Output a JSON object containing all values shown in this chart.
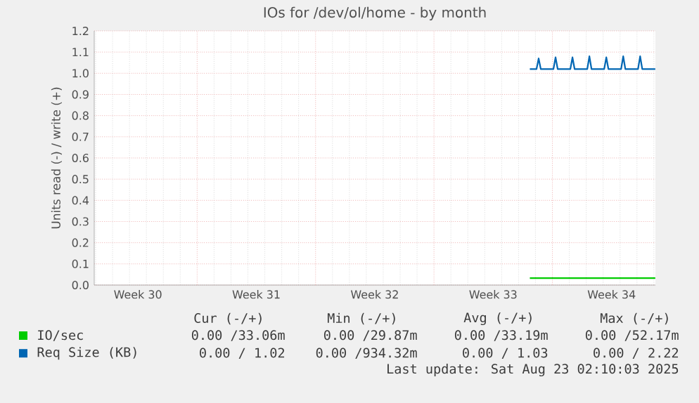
{
  "chart_data": {
    "type": "line",
    "title": "IOs for /dev/ol/home - by month",
    "ylabel": "Units read (-) / write (+)",
    "xlim": [
      "2025-07-20T22:00",
      "2025-08-23T02:10"
    ],
    "xticks": [
      {
        "value": "2025-07-23T12:00",
        "label": "Week 30"
      },
      {
        "value": "2025-07-27",
        "label": null
      },
      {
        "value": "2025-07-30T12:00",
        "label": "Week 31"
      },
      {
        "value": "2025-08-03",
        "label": null
      },
      {
        "value": "2025-08-06T12:00",
        "label": "Week 32"
      },
      {
        "value": "2025-08-10",
        "label": null
      },
      {
        "value": "2025-08-13T12:00",
        "label": "Week 33"
      },
      {
        "value": "2025-08-17",
        "label": null
      },
      {
        "value": "2025-08-20T12:00",
        "label": "Week 34"
      }
    ],
    "ylim": [
      0,
      1.2
    ],
    "yticks": [
      {
        "value": 0,
        "label": "0.0"
      },
      0.1,
      0.2,
      0.3,
      0.4,
      0.5,
      0.6,
      0.7,
      0.8,
      0.9,
      {
        "value": 1,
        "label": "1.0"
      },
      1.1,
      1.2
    ],
    "grid": true,
    "legend": "bottom",
    "series": [
      {
        "name": "IO/sec",
        "color": "#00cc00",
        "x": [
          "2025-08-15T16:00",
          "2025-08-23T02:00"
        ],
        "values": [
          0.033,
          0.033
        ]
      },
      {
        "name": "Req Size (KB)",
        "color": "#0066b3",
        "x": [
          "2025-08-15T16:00",
          "2025-08-16T01:30",
          "2025-08-16T04:30",
          "2025-08-16T07:30",
          "2025-08-17T01:30",
          "2025-08-17T04:30",
          "2025-08-17T07:30",
          "2025-08-18T01:30",
          "2025-08-18T04:30",
          "2025-08-18T07:30",
          "2025-08-19T01:30",
          "2025-08-19T04:30",
          "2025-08-19T07:30",
          "2025-08-20T01:30",
          "2025-08-20T04:30",
          "2025-08-20T07:30",
          "2025-08-21T01:30",
          "2025-08-21T04:30",
          "2025-08-21T07:30",
          "2025-08-22T01:30",
          "2025-08-22T04:30",
          "2025-08-22T07:30",
          "2025-08-23T02:00"
        ],
        "values": [
          1.02,
          1.02,
          1.07,
          1.02,
          1.02,
          1.075,
          1.02,
          1.02,
          1.075,
          1.02,
          1.02,
          1.08,
          1.02,
          1.02,
          1.075,
          1.02,
          1.02,
          1.08,
          1.02,
          1.02,
          1.08,
          1.02,
          1.02
        ]
      }
    ],
    "annotations": [
      "Cur (-/+)",
      "Min (-/+)",
      "Avg (-/+)",
      "Max (-/+)",
      "0.00 /33.06m",
      "0.00 /29.87m",
      "0.00 /33.19m",
      "0.00 /52.17m",
      "0.00 / 1.02",
      "0.00 /934.32m",
      "0.00 / 1.03",
      "0.00 / 2.22",
      "Last update: Sat Aug 23 02:10:03 2025"
    ]
  }
}
